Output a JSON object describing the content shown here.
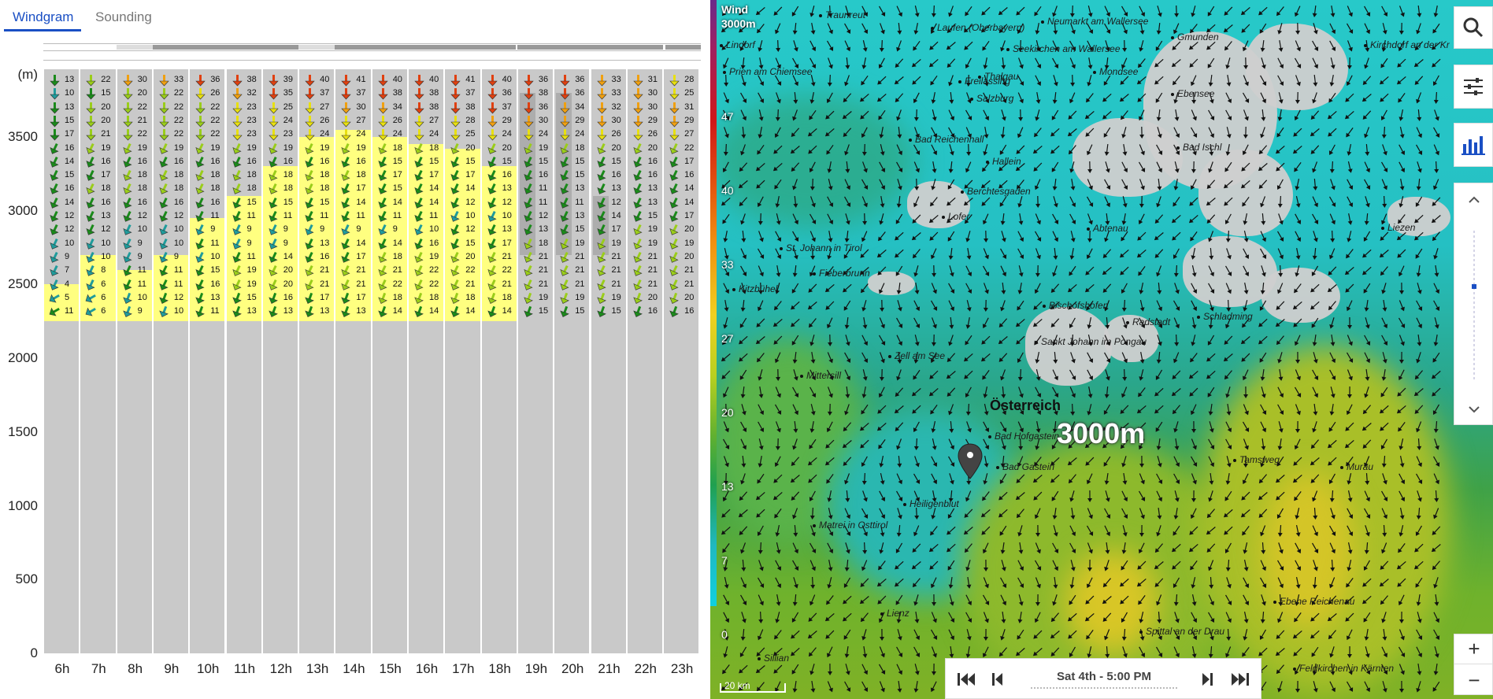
{
  "tabs": [
    {
      "label": "Windgram",
      "active": true
    },
    {
      "label": "Sounding",
      "active": false
    }
  ],
  "windgram": {
    "unit_label": "(m)",
    "y_ticks": [
      0,
      500,
      1000,
      1500,
      2000,
      2500,
      3000,
      3500
    ],
    "hours": [
      "6h",
      "7h",
      "8h",
      "9h",
      "10h",
      "11h",
      "12h",
      "13h",
      "14h",
      "15h",
      "16h",
      "17h",
      "18h",
      "19h",
      "20h",
      "21h",
      "22h",
      "23h"
    ],
    "levels_m": [
      2250,
      2330,
      2520,
      2620,
      2720,
      2820,
      2920,
      3020,
      3120,
      3220,
      3320,
      3420,
      3520,
      3620,
      3720,
      3820,
      3920,
      4020
    ],
    "speeds": [
      [
        11,
        6,
        9,
        10,
        11,
        13,
        13,
        13,
        13,
        14,
        14,
        14,
        14,
        15,
        15,
        15,
        16,
        16
      ],
      [
        5,
        6,
        10,
        12,
        13,
        15,
        16,
        17,
        17,
        18,
        18,
        18,
        18,
        19,
        19,
        19,
        20,
        20
      ],
      [
        4,
        6,
        11,
        11,
        16,
        19,
        20,
        21,
        21,
        22,
        22,
        21,
        21,
        21,
        21,
        21,
        21,
        21
      ],
      [
        7,
        8,
        11,
        11,
        15,
        19,
        20,
        21,
        21,
        21,
        22,
        22,
        22,
        21,
        21,
        21,
        21,
        21
      ],
      [
        9,
        10,
        9,
        9,
        10,
        11,
        14,
        16,
        17,
        18,
        19,
        20,
        21,
        21,
        21,
        21,
        21,
        20
      ],
      [
        10,
        10,
        9,
        10,
        11,
        9,
        9,
        13,
        14,
        14,
        16,
        15,
        17,
        18,
        19,
        19,
        19,
        19
      ],
      [
        12,
        12,
        10,
        10,
        9,
        9,
        9,
        9,
        9,
        9,
        10,
        12,
        13,
        13,
        15,
        17,
        19,
        20
      ],
      [
        12,
        13,
        12,
        12,
        11,
        11,
        11,
        11,
        11,
        11,
        11,
        10,
        10,
        12,
        13,
        14,
        15,
        17
      ],
      [
        14,
        16,
        16,
        16,
        16,
        15,
        15,
        15,
        14,
        14,
        14,
        12,
        12,
        11,
        11,
        12,
        13,
        14
      ],
      [
        16,
        18,
        18,
        18,
        18,
        18,
        18,
        18,
        17,
        15,
        14,
        14,
        13,
        11,
        13,
        13,
        13,
        14
      ],
      [
        15,
        17,
        18,
        18,
        18,
        18,
        18,
        18,
        18,
        17,
        17,
        17,
        16,
        16,
        15,
        16,
        16,
        16
      ],
      [
        14,
        16,
        16,
        16,
        16,
        16,
        16,
        16,
        16,
        15,
        15,
        15,
        15,
        15,
        15,
        15,
        16,
        17
      ],
      [
        16,
        19,
        19,
        19,
        19,
        19,
        19,
        19,
        19,
        18,
        18,
        20,
        20,
        19,
        18,
        20,
        20,
        22
      ],
      [
        17,
        21,
        22,
        22,
        22,
        23,
        23,
        24,
        24,
        24,
        24,
        25,
        24,
        24,
        24,
        26,
        26,
        27
      ],
      [
        15,
        20,
        21,
        22,
        22,
        23,
        24,
        26,
        27,
        26,
        27,
        28,
        29,
        30,
        29,
        30,
        29,
        29
      ],
      [
        13,
        20,
        22,
        22,
        22,
        23,
        25,
        27,
        30,
        34,
        38,
        38,
        37,
        36,
        34,
        32,
        30,
        31
      ],
      [
        10,
        15,
        20,
        22,
        26,
        32,
        35,
        37,
        37,
        38,
        38,
        37,
        36,
        38,
        36,
        33,
        30,
        25
      ],
      [
        13,
        22,
        30,
        33,
        36,
        38,
        39,
        40,
        41,
        40,
        40,
        41,
        40,
        36,
        36,
        33,
        31,
        28
      ]
    ]
  },
  "map": {
    "legend_title": "Wind",
    "legend_sub": "3000m",
    "legend_ticks": [
      47,
      40,
      33,
      27,
      20,
      13,
      7,
      0
    ],
    "country": "Österreich",
    "altitude_label": "3000m",
    "towns": [
      "Traunreut",
      "Laufen (Oberbayern)",
      "Neumarkt am Wallersee",
      "Gmunden",
      "Kirchdorf an der Kr",
      "Seekirchen am Wallersee",
      "Prien am Chiemsee",
      "Mondsee",
      "Thalgau",
      "Freilassing",
      "Salzburg",
      "Ebensee",
      "Bad Reichenhall",
      "Bad Ischl",
      "Hallein",
      "Berchtesgaden",
      "Lofer",
      "Abtenau",
      "Liezen",
      "St. Johann in Tirol",
      "Fieberbrunn",
      "Kitzbühel",
      "Bischofshofen",
      "Radstadt",
      "Schladming",
      "Sankt Johann im Pongau",
      "Zell am See",
      "Mittersill",
      "Bad Hofgastein",
      "Bad Gastein",
      "Tamsweg",
      "Murau",
      "Heiligenblut",
      "Matrei in Osttirol",
      "Lienz",
      "Ebene Reichenau",
      "Spittal an der Drau",
      "Sillian",
      "Feldkirchen in Kärnten",
      "Lindorf"
    ],
    "scale": "20 km",
    "time": "Sat 4th - 5:00 PM"
  }
}
